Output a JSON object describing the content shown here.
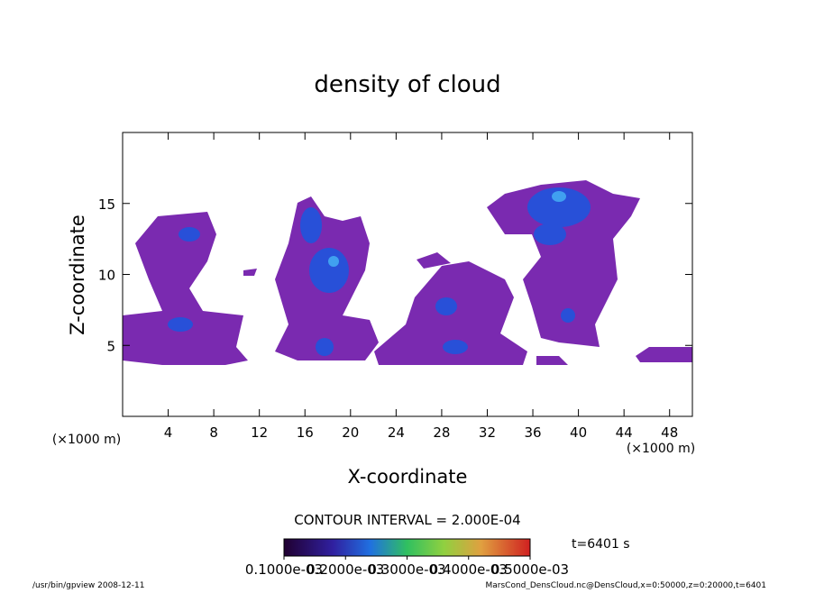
{
  "chart_data": {
    "type": "contour",
    "title": "density of cloud",
    "x_label": "X-coordinate",
    "y_label": "Z-coordinate",
    "x_unit": "(×1000 m)",
    "y_unit": "(×1000 m)",
    "xlim": [
      0,
      50
    ],
    "ylim": [
      0,
      20
    ],
    "xticks": [
      4,
      8,
      12,
      16,
      20,
      24,
      28,
      32,
      36,
      40,
      44,
      48
    ],
    "yticks": [
      5,
      10,
      15
    ],
    "contour_interval": "CONTOUR INTERVAL = 2.000E-04",
    "time_label": "t=6401 s",
    "colorbar": {
      "lim": [
        0.0001,
        0.0005
      ],
      "ticks": [
        {
          "value": 0.0001,
          "label": "0.1000e-03"
        },
        {
          "value": 0.0002,
          "label": "0.2000e-03"
        },
        {
          "value": 0.0003,
          "label": "0.3000e-03"
        },
        {
          "value": 0.0004,
          "label": "0.4000e-03"
        },
        {
          "value": 0.0005,
          "label": "0.5000e-03"
        }
      ]
    },
    "footer_left": "/usr/bin/gpview   2008-12-11",
    "footer_right": "MarsCond_DensCloud.nc@DensCloud,x=0:50000,z=0:20000,t=6401"
  }
}
